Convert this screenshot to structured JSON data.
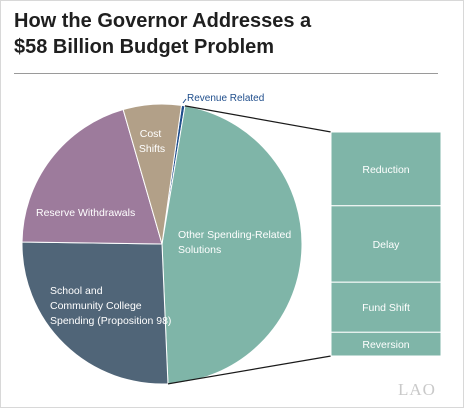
{
  "chart_data": {
    "type": "pie",
    "title": "How the Governor Addresses a $58 Billion Budget Problem",
    "slices": [
      {
        "label": "Revenue Related",
        "value": 0.4,
        "color": "#1f4e8c"
      },
      {
        "label": "Other Spending-Related Solutions",
        "value": 46.7,
        "color": "#7fb5a8"
      },
      {
        "label": "School and Community College Spending (Proposition 98)",
        "value": 25.9,
        "color": "#506578"
      },
      {
        "label": "Reserve Withdrawals",
        "value": 20.3,
        "color": "#9d7b9c"
      },
      {
        "label": "Cost Shifts",
        "value": 6.7,
        "color": "#b2a088"
      }
    ],
    "breakdown": {
      "of": "Other Spending-Related Solutions",
      "color": "#7fb5a8",
      "segments": [
        {
          "label": "Reduction",
          "value": 28
        },
        {
          "label": "Delay",
          "value": 29
        },
        {
          "label": "Fund Shift",
          "value": 19
        },
        {
          "label": "Reversion",
          "value": 9
        }
      ]
    }
  },
  "labels": {
    "title_line1": "How the Governor Addresses a",
    "title_line2": "$58 Billion Budget Problem",
    "revenue": "Revenue Related",
    "cost_line1": "Cost",
    "cost_line2": "Shifts",
    "reserve": "Reserve Withdrawals",
    "other_line1": "Other Spending-Related",
    "other_line2": "Solutions",
    "school_line1": "School and",
    "school_line2": "Community College",
    "school_line3": "Spending (Proposition 98)"
  },
  "logo": "LAO"
}
